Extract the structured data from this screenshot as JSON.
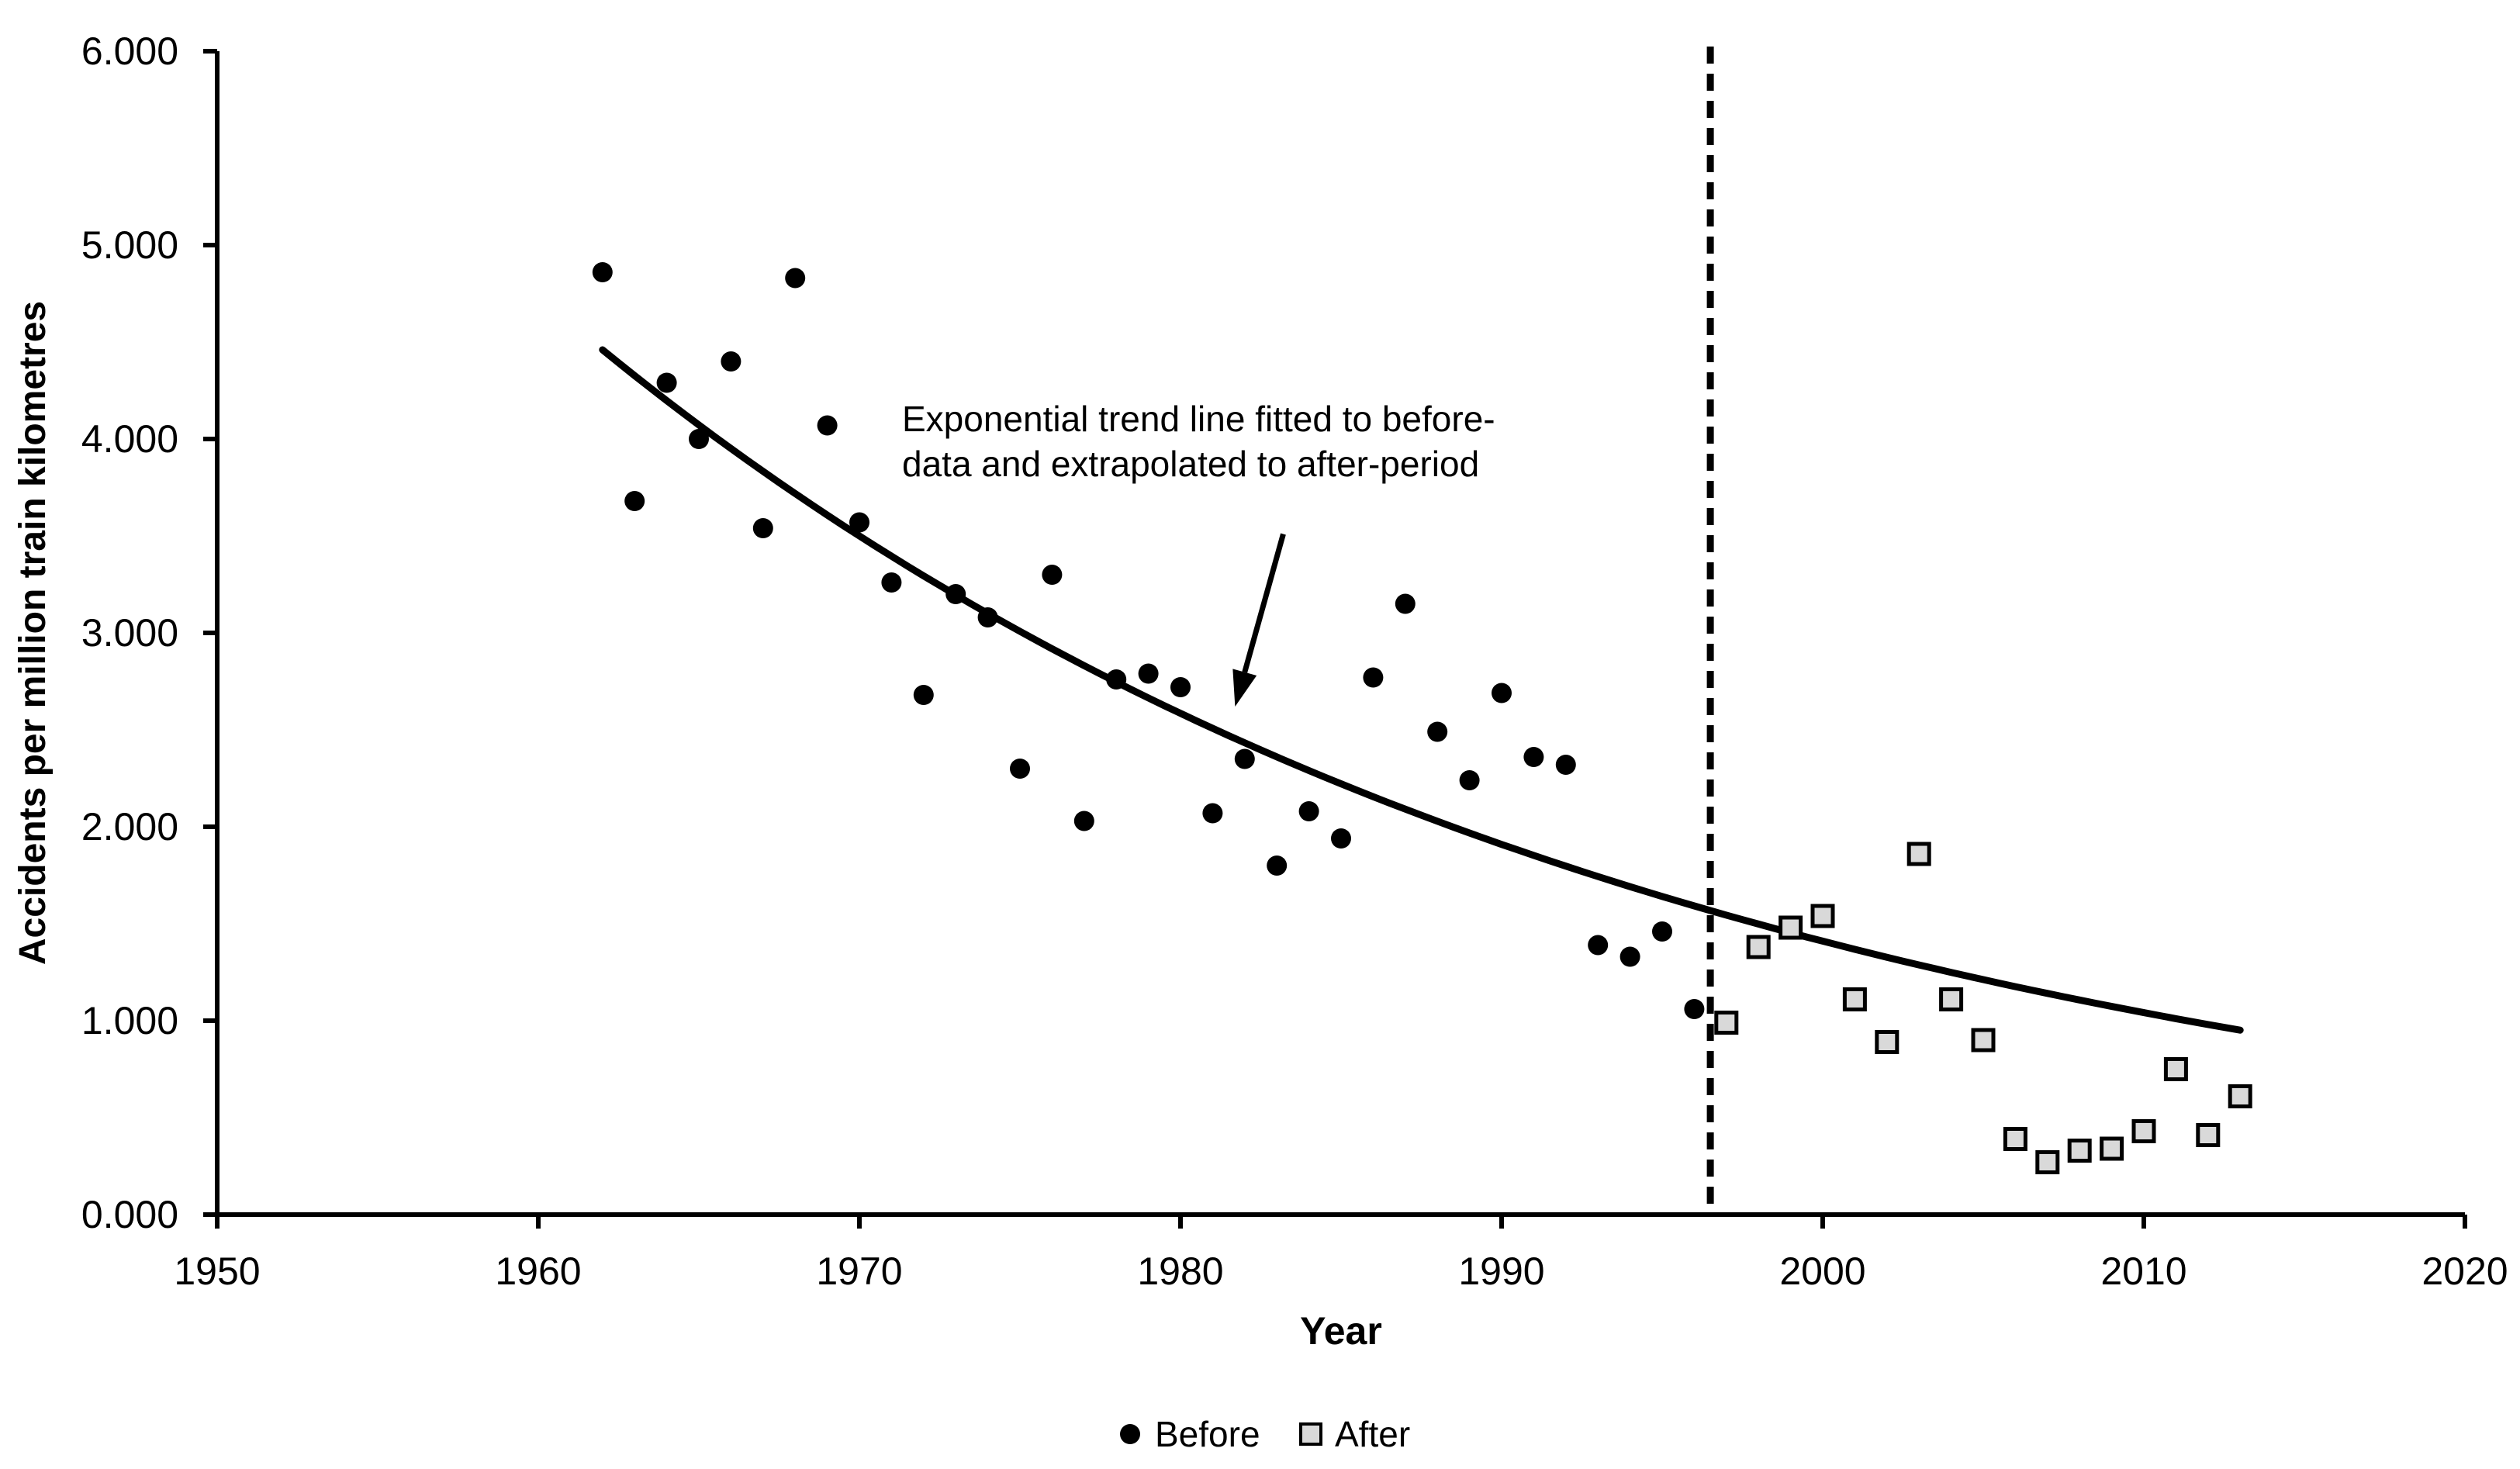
{
  "colors": {
    "ink": "#000000",
    "after_marker_fill": "#d9d9d9",
    "background": "#ffffff"
  },
  "y_axis": {
    "title": "Accidents per million train kilometres",
    "tick_labels": [
      "0.000",
      "1.000",
      "2.000",
      "3.000",
      "4.000",
      "5.000",
      "6.000"
    ],
    "tick_values": [
      0,
      1,
      2,
      3,
      4,
      5,
      6
    ]
  },
  "x_axis": {
    "title": "Year",
    "tick_labels": [
      "1950",
      "1960",
      "1970",
      "1980",
      "1990",
      "2000",
      "2010",
      "2020"
    ],
    "tick_values": [
      1950,
      1960,
      1970,
      1980,
      1990,
      2000,
      2010,
      2020
    ]
  },
  "legend": {
    "items": [
      {
        "label": "Before",
        "marker": "circle",
        "fill": "#000000"
      },
      {
        "label": "After",
        "marker": "square",
        "fill": "#d9d9d9",
        "stroke": "#000000"
      }
    ]
  },
  "annotation": {
    "line1": "Exponential trend line fitted to before-",
    "line2": "data and extrapolated to after-period",
    "arrow": {
      "from_year": 1983.2,
      "from_value": 3.51,
      "to_year": 1981.7,
      "to_value": 2.62
    }
  },
  "chart_data": {
    "type": "scatter",
    "title": "",
    "xlabel": "Year",
    "ylabel": "Accidents per million train kilometres",
    "xlim": [
      1950,
      2020
    ],
    "ylim": [
      0,
      6
    ],
    "grid": false,
    "legend_position": "bottom-center",
    "series": [
      {
        "name": "Before",
        "marker": "circle",
        "color": "#000000",
        "years": [
          1962,
          1963,
          1964,
          1965,
          1966,
          1967,
          1968,
          1969,
          1970,
          1971,
          1972,
          1973,
          1974,
          1975,
          1976,
          1977,
          1978,
          1979,
          1980,
          1981,
          1982,
          1983,
          1984,
          1985,
          1986,
          1987,
          1988,
          1989,
          1990,
          1991,
          1992,
          1993,
          1994,
          1995,
          1996
        ],
        "values": [
          4.86,
          3.68,
          4.29,
          4.0,
          4.4,
          3.54,
          4.83,
          4.07,
          3.57,
          3.26,
          2.68,
          3.2,
          3.08,
          2.3,
          3.3,
          2.03,
          2.76,
          2.79,
          2.72,
          2.07,
          2.35,
          1.8,
          2.08,
          1.94,
          2.77,
          3.15,
          2.49,
          2.24,
          2.69,
          2.36,
          2.32,
          1.39,
          1.33,
          1.46,
          1.06
        ]
      },
      {
        "name": "After",
        "marker": "square",
        "color": "#d9d9d9",
        "border": "#000000",
        "years": [
          1997,
          1998,
          1999,
          2000,
          2001,
          2002,
          2003,
          2004,
          2005,
          2006,
          2007,
          2008,
          2009,
          2010,
          2011,
          2012,
          2013
        ],
        "values": [
          0.99,
          1.38,
          1.48,
          1.54,
          1.11,
          0.89,
          1.86,
          1.11,
          0.9,
          0.39,
          0.27,
          0.33,
          0.34,
          0.43,
          0.75,
          0.41,
          0.61
        ]
      }
    ],
    "trend_line": {
      "description": "Exponential trend line fitted to before-data and extrapolated to after-period",
      "equation": "value = 4.46 * exp(-0.0303 * (year - 1962))",
      "a": 4.46,
      "b": -0.0303,
      "base_year": 1962,
      "from_year": 1962,
      "to_year": 2013.2
    },
    "break_line": {
      "year": 1996.5,
      "style": "dashed",
      "orientation": "vertical"
    }
  }
}
